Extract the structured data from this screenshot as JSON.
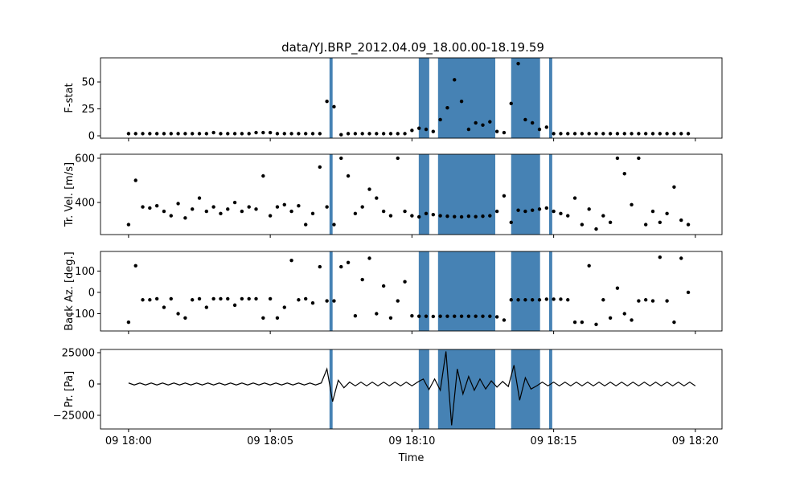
{
  "chart_data": [
    {
      "type": "scatter",
      "title": "data/YJ.BRP_2012.04.09_18.00.00-18.19.59",
      "ylabel": "F-stat",
      "color": "#000000",
      "span_color": "#4682b4",
      "spans": [
        [
          7.09,
          7.2
        ],
        [
          10.24,
          10.61
        ],
        [
          10.92,
          12.94
        ],
        [
          13.5,
          14.52
        ],
        [
          14.84,
          14.95
        ]
      ],
      "x": [
        0,
        0.25,
        0.5,
        0.75,
        1,
        1.25,
        1.5,
        1.75,
        2,
        2.25,
        2.5,
        2.75,
        3,
        3.25,
        3.5,
        3.75,
        4,
        4.25,
        4.5,
        4.75,
        5,
        5.25,
        5.5,
        5.75,
        6,
        6.25,
        6.5,
        6.75,
        7,
        7.25,
        7.5,
        7.75,
        8,
        8.25,
        8.5,
        8.75,
        9,
        9.25,
        9.5,
        9.75,
        10,
        10.25,
        10.5,
        10.75,
        11,
        11.25,
        11.5,
        11.75,
        12,
        12.25,
        12.5,
        12.75,
        13,
        13.25,
        13.5,
        13.75,
        14,
        14.25,
        14.5,
        14.75,
        15,
        15.25,
        15.5,
        15.75,
        16,
        16.25,
        16.5,
        16.75,
        17,
        17.25,
        17.5,
        17.75,
        18,
        18.25,
        18.5,
        18.75,
        19,
        19.25,
        19.5,
        19.75
      ],
      "values": [
        2,
        2,
        2,
        2,
        2,
        2,
        2,
        2,
        2,
        2,
        2,
        2,
        3,
        2,
        2,
        2,
        2,
        2,
        3,
        3,
        3,
        2,
        2,
        2,
        2,
        2,
        2,
        2,
        32,
        27,
        1,
        2,
        2,
        2,
        2,
        2,
        2,
        2,
        2,
        2,
        5,
        7,
        6,
        4,
        15,
        26,
        52,
        32,
        6,
        12,
        10,
        13,
        4,
        3,
        30,
        67,
        15,
        12,
        6,
        8,
        2,
        2,
        2,
        2,
        2,
        2,
        2,
        2,
        2,
        2,
        2,
        2,
        2,
        2,
        2,
        2,
        2,
        2,
        2,
        2
      ],
      "xlim": [
        -0.99,
        20.94
      ],
      "xticks": [
        0,
        5,
        10,
        15,
        20
      ],
      "ylim": [
        -2.2,
        72.4
      ],
      "yticks": [
        0,
        25,
        50
      ]
    },
    {
      "type": "scatter",
      "ylabel": "Tr. Vel. [m/s]",
      "color": "#000000",
      "span_color": "#4682b4",
      "spans": [
        [
          7.09,
          7.2
        ],
        [
          10.24,
          10.61
        ],
        [
          10.92,
          12.94
        ],
        [
          13.5,
          14.52
        ],
        [
          14.84,
          14.95
        ]
      ],
      "x": [
        0,
        0.25,
        0.5,
        0.75,
        1,
        1.25,
        1.5,
        1.75,
        2,
        2.25,
        2.5,
        2.75,
        3,
        3.25,
        3.5,
        3.75,
        4,
        4.25,
        4.5,
        4.75,
        5,
        5.25,
        5.5,
        5.75,
        6,
        6.25,
        6.5,
        6.75,
        7,
        7.25,
        7.5,
        7.75,
        8,
        8.25,
        8.5,
        8.75,
        9,
        9.25,
        9.5,
        9.75,
        10,
        10.25,
        10.5,
        10.75,
        11,
        11.25,
        11.5,
        11.75,
        12,
        12.25,
        12.5,
        12.75,
        13,
        13.25,
        13.5,
        13.75,
        14,
        14.25,
        14.5,
        14.75,
        15,
        15.25,
        15.5,
        15.75,
        16,
        16.25,
        16.5,
        16.75,
        17,
        17.25,
        17.5,
        17.75,
        18,
        18.25,
        18.5,
        18.75,
        19,
        19.25,
        19.5,
        19.75
      ],
      "values": [
        300,
        500,
        380,
        375,
        385,
        360,
        340,
        395,
        330,
        370,
        420,
        360,
        380,
        350,
        370,
        400,
        360,
        380,
        370,
        520,
        340,
        380,
        390,
        360,
        385,
        300,
        350,
        560,
        380,
        300,
        600,
        520,
        350,
        380,
        460,
        420,
        360,
        340,
        600,
        360,
        340,
        335,
        350,
        345,
        340,
        338,
        336,
        335,
        338,
        336,
        338,
        340,
        360,
        430,
        310,
        365,
        360,
        365,
        370,
        375,
        360,
        350,
        340,
        420,
        300,
        370,
        280,
        340,
        310,
        600,
        530,
        390,
        600,
        300,
        360,
        310,
        350,
        470,
        320,
        300
      ],
      "xlim": [
        -0.99,
        20.94
      ],
      "xticks": [
        0,
        5,
        10,
        15,
        20
      ],
      "ylim": [
        255,
        618
      ],
      "yticks": [
        400,
        600
      ]
    },
    {
      "type": "scatter",
      "ylabel": "Back Az. [deg.]",
      "color": "#000000",
      "span_color": "#4682b4",
      "spans": [
        [
          7.09,
          7.2
        ],
        [
          10.24,
          10.61
        ],
        [
          10.92,
          12.94
        ],
        [
          13.5,
          14.52
        ],
        [
          14.84,
          14.95
        ]
      ],
      "x": [
        0,
        0.25,
        0.5,
        0.75,
        1,
        1.25,
        1.5,
        1.75,
        2,
        2.25,
        2.5,
        2.75,
        3,
        3.25,
        3.5,
        3.75,
        4,
        4.25,
        4.5,
        4.75,
        5,
        5.25,
        5.5,
        5.75,
        6,
        6.25,
        6.5,
        6.75,
        7,
        7.25,
        7.5,
        7.75,
        8,
        8.25,
        8.5,
        8.75,
        9,
        9.25,
        9.5,
        9.75,
        10,
        10.25,
        10.5,
        10.75,
        11,
        11.25,
        11.5,
        11.75,
        12,
        12.25,
        12.5,
        12.75,
        13,
        13.25,
        13.5,
        13.75,
        14,
        14.25,
        14.5,
        14.75,
        15,
        15.25,
        15.5,
        15.75,
        16,
        16.25,
        16.5,
        16.75,
        17,
        17.25,
        17.5,
        17.75,
        18,
        18.25,
        18.5,
        18.75,
        19,
        19.25,
        19.5,
        19.75
      ],
      "values": [
        -140,
        125,
        -35,
        -35,
        -30,
        -70,
        -30,
        -100,
        -120,
        -35,
        -30,
        -70,
        -30,
        -30,
        -30,
        -60,
        -30,
        -30,
        -30,
        -120,
        -30,
        -120,
        -70,
        150,
        -35,
        -30,
        -50,
        120,
        -40,
        -40,
        120,
        140,
        -110,
        60,
        160,
        -100,
        30,
        -120,
        -40,
        50,
        -110,
        -112,
        -112,
        -113,
        -112,
        -112,
        -112,
        -112,
        -112,
        -112,
        -112,
        -112,
        -115,
        -130,
        -35,
        -35,
        -35,
        -35,
        -35,
        -32,
        -32,
        -32,
        -35,
        -140,
        -140,
        125,
        -150,
        -35,
        -120,
        20,
        -100,
        -130,
        -40,
        -35,
        -40,
        165,
        -40,
        -140,
        160,
        0
      ],
      "xlim": [
        -0.99,
        20.94
      ],
      "xticks": [
        0,
        5,
        10,
        15,
        20
      ],
      "ylim": [
        -181,
        192
      ],
      "yticks": [
        {
          "value": -100,
          "label": "−100"
        },
        0,
        100
      ]
    },
    {
      "type": "line",
      "ylabel": "Pr. [Pa]",
      "xlabel": "Time",
      "color": "#000000",
      "span_color": "#4682b4",
      "spans": [
        [
          7.09,
          7.2
        ],
        [
          10.24,
          10.61
        ],
        [
          10.92,
          12.94
        ],
        [
          13.5,
          14.52
        ],
        [
          14.84,
          14.95
        ]
      ],
      "x": [
        0,
        0.2,
        0.4,
        0.6,
        0.8,
        1,
        1.2,
        1.4,
        1.6,
        1.8,
        2,
        2.2,
        2.4,
        2.6,
        2.8,
        3,
        3.2,
        3.4,
        3.6,
        3.8,
        4,
        4.2,
        4.4,
        4.6,
        4.8,
        5,
        5.2,
        5.4,
        5.6,
        5.8,
        6,
        6.2,
        6.4,
        6.6,
        6.8,
        7,
        7.2,
        7.4,
        7.6,
        7.8,
        8,
        8.2,
        8.4,
        8.6,
        8.8,
        9,
        9.2,
        9.4,
        9.6,
        9.8,
        10,
        10.2,
        10.4,
        10.6,
        10.8,
        11,
        11.2,
        11.4,
        11.6,
        11.8,
        12,
        12.2,
        12.4,
        12.6,
        12.8,
        13,
        13.2,
        13.4,
        13.6,
        13.8,
        14,
        14.2,
        14.4,
        14.6,
        14.8,
        15,
        15.2,
        15.4,
        15.6,
        15.8,
        16,
        16.2,
        16.4,
        16.6,
        16.8,
        17,
        17.2,
        17.4,
        17.6,
        17.8,
        18,
        18.2,
        18.4,
        18.6,
        18.8,
        19,
        19.2,
        19.4,
        19.6,
        19.8,
        20
      ],
      "values": [
        800,
        -800,
        800,
        -800,
        800,
        -800,
        800,
        -800,
        800,
        -800,
        800,
        -800,
        800,
        -800,
        800,
        -800,
        800,
        -800,
        800,
        -800,
        800,
        -800,
        800,
        -800,
        800,
        -800,
        800,
        -800,
        800,
        -800,
        800,
        -800,
        800,
        -800,
        800,
        12000,
        -14000,
        3000,
        -3000,
        1500,
        -1500,
        1500,
        -1500,
        1500,
        -1500,
        1500,
        -1500,
        1500,
        -1500,
        1500,
        -1500,
        1500,
        4000,
        -4500,
        4000,
        -5000,
        26000,
        -33000,
        12000,
        -8000,
        6000,
        -5000,
        4000,
        -4000,
        2500,
        -2500,
        2000,
        -2000,
        15000,
        -13000,
        5000,
        -4000,
        -1500,
        1500,
        -1500,
        1500,
        -1500,
        1500,
        -1500,
        1500,
        -1500,
        1500,
        -1500,
        1500,
        -1500,
        1500,
        -1500,
        1500,
        -1500,
        1500,
        -1500,
        1500,
        -1500,
        1500,
        -1500,
        1500,
        -1500,
        1500,
        -1500,
        1500,
        -1500
      ],
      "xlim": [
        -0.99,
        20.94
      ],
      "xticks": [
        {
          "value": 0,
          "label": "09 18:00"
        },
        {
          "value": 5,
          "label": "09 18:05"
        },
        {
          "value": 10,
          "label": "09 18:10"
        },
        {
          "value": 15,
          "label": "09 18:15"
        },
        {
          "value": 20,
          "label": "09 18:20"
        }
      ],
      "ylim": [
        -35900,
        27564
      ],
      "yticks": [
        {
          "value": -25000,
          "label": "−25000"
        },
        0,
        25000
      ]
    }
  ]
}
